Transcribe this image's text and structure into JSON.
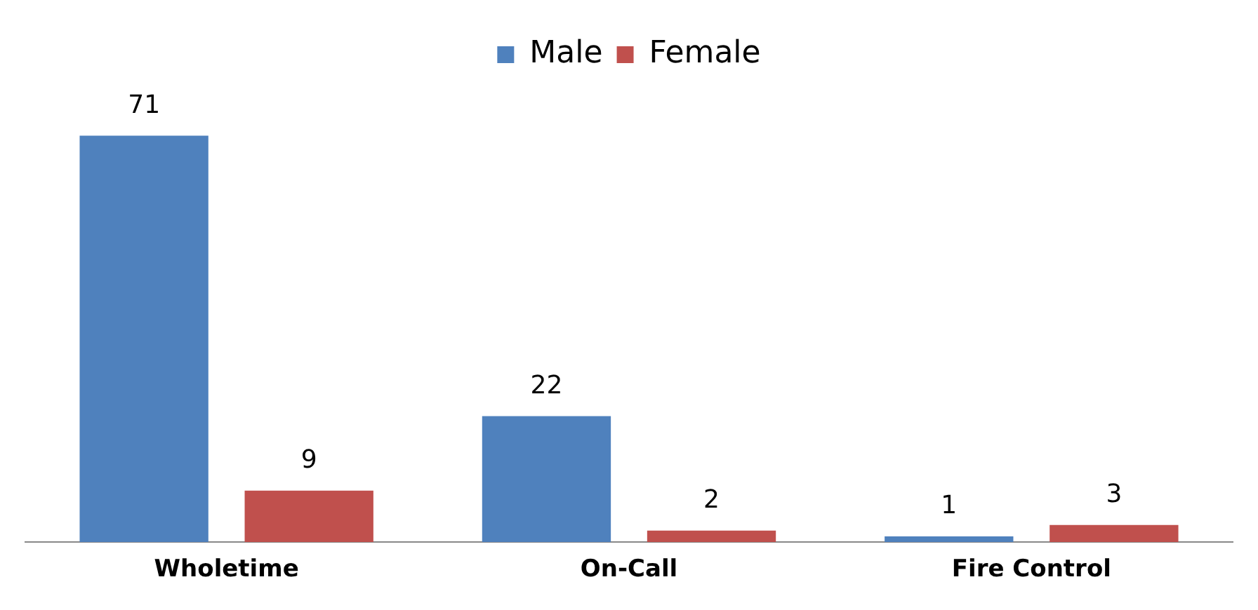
{
  "chart_data": {
    "type": "bar",
    "categories": [
      "Wholetime",
      "On-Call",
      "Fire Control"
    ],
    "series": [
      {
        "name": "Male",
        "color": "#4f81bd",
        "values": [
          71,
          22,
          1
        ]
      },
      {
        "name": "Female",
        "color": "#c0504d",
        "values": [
          9,
          2,
          3
        ]
      }
    ],
    "data_labels": true,
    "legend": "top",
    "grid": false
  }
}
